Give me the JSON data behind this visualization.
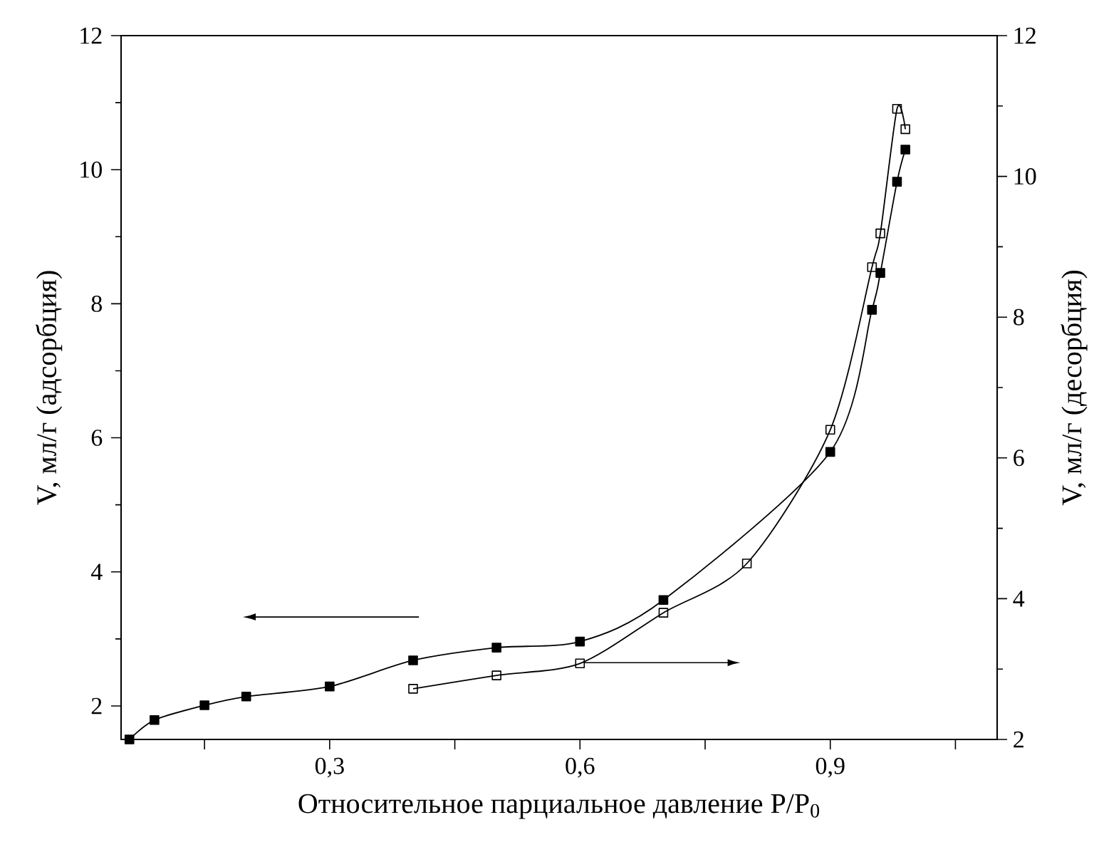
{
  "chart_data": {
    "type": "line",
    "xlabel": "Относительное парциальное давление P/P$_{0}$",
    "ylabel": "V, мл/г (адсорбция)",
    "y2label": "V, мл/г (десорбция)",
    "xlim": [
      0.05,
      1.1
    ],
    "xticks": [
      {
        "value": 0.15,
        "label": null
      },
      {
        "value": 0.3,
        "label": "0,3"
      },
      {
        "value": 0.45,
        "label": null
      },
      {
        "value": 0.6,
        "label": "0,6"
      },
      {
        "value": 0.75,
        "label": null
      },
      {
        "value": 0.9,
        "label": "0,9"
      },
      {
        "value": 1.05,
        "label": null
      }
    ],
    "ylim": [
      1.5,
      12
    ],
    "yticks": [
      2,
      4,
      6,
      8,
      10,
      12
    ],
    "y2lim": [
      2,
      12
    ],
    "y2ticks": [
      2,
      4,
      6,
      8,
      10,
      12
    ],
    "marker": "square",
    "line_style": "solid",
    "grid": false,
    "legend": false,
    "series": [
      {
        "color": "#000000",
        "x": [
          0.06,
          0.09,
          0.15,
          0.2,
          0.3,
          0.4,
          0.5,
          0.6,
          0.7,
          0.9,
          0.95,
          0.96,
          0.98,
          0.99
        ],
        "values": [
          1.5,
          1.79,
          2.01,
          2.14,
          2.29,
          2.68,
          2.87,
          2.96,
          3.58,
          5.79,
          7.91,
          8.46,
          9.82,
          10.3
        ]
      },
      {
        "color": "#000000",
        "axis": "y2",
        "x": [
          0.4,
          0.5,
          0.6,
          0.7,
          0.8,
          0.9,
          0.95,
          0.96,
          0.98,
          0.99
        ],
        "values": [
          2.72,
          2.91,
          3.08,
          3.8,
          4.5,
          6.4,
          8.71,
          9.19,
          10.96,
          10.67
        ]
      }
    ]
  }
}
